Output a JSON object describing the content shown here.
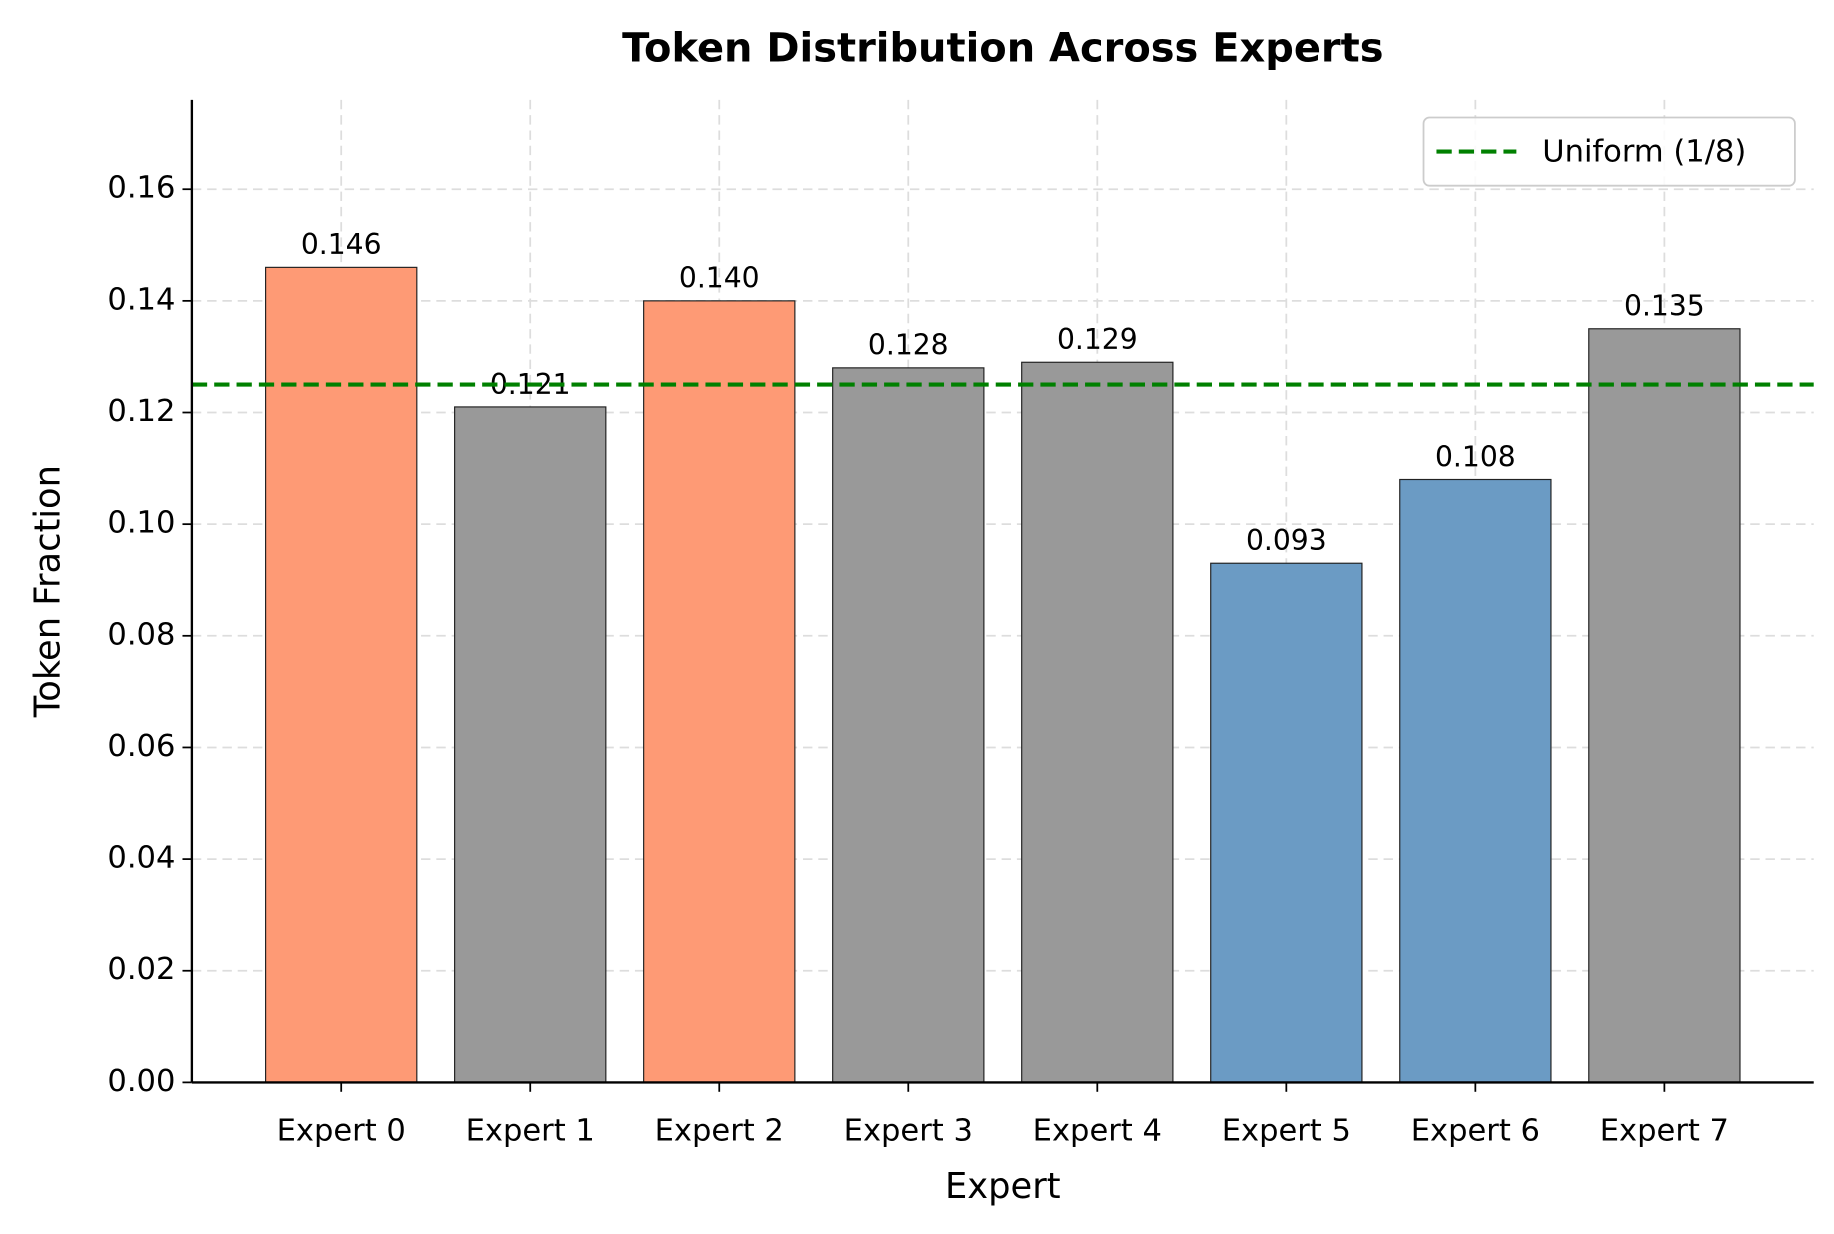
{
  "chart_data": {
    "type": "bar",
    "title": "Token Distribution Across Experts",
    "x_label": "Expert",
    "y_label": "Token Fraction",
    "categories": [
      "Expert 0",
      "Expert 1",
      "Expert 2",
      "Expert 3",
      "Expert 4",
      "Expert 5",
      "Expert 6",
      "Expert 7"
    ],
    "values": [
      0.146,
      0.121,
      0.14,
      0.128,
      0.129,
      0.093,
      0.108,
      0.135
    ],
    "value_labels": [
      "0.146",
      "0.121",
      "0.140",
      "0.128",
      "0.129",
      "0.093",
      "0.108",
      "0.135"
    ],
    "colors": [
      "#fe9a75",
      "#999999",
      "#fe9a75",
      "#999999",
      "#999999",
      "#6b9bc4",
      "#6b9bc4",
      "#999999"
    ],
    "ylim": [
      0,
      0.176
    ],
    "yticks": [
      {
        "value": 0,
        "label": "0.00"
      },
      0.02,
      0.04,
      0.06,
      0.08,
      {
        "value": 0.1,
        "label": "0.10"
      },
      0.12,
      0.14,
      0.16
    ],
    "grid": true,
    "reference_line": {
      "value": 0.125,
      "label": "Uniform (1/8)",
      "color": "#008000"
    },
    "legend_position": "upper right"
  }
}
